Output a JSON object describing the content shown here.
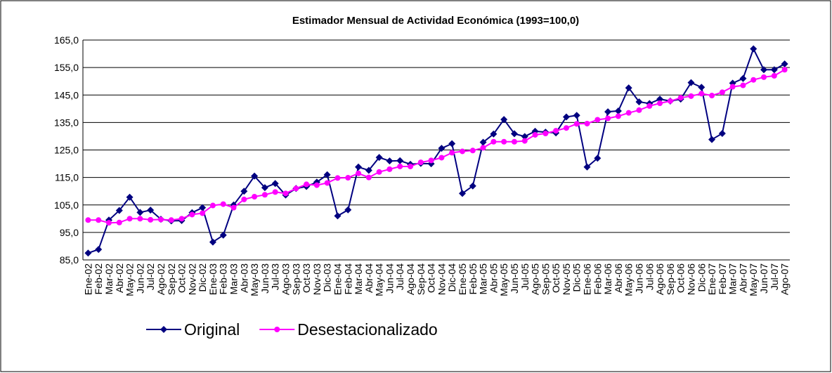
{
  "chart_data": {
    "type": "line",
    "title": "Estimador Mensual de Actividad Económica (1993=100,0)",
    "categories": [
      "Ene-02",
      "Feb-02",
      "Mar-02",
      "Abr-02",
      "May-02",
      "Jun-02",
      "Jul-02",
      "Ago-02",
      "Sep-02",
      "Oct-02",
      "Nov-02",
      "Dic-02",
      "Ene-03",
      "Feb-03",
      "Mar-03",
      "Abr-03",
      "May-03",
      "Jun-03",
      "Jul-03",
      "Ago-03",
      "Sep-03",
      "Oct-03",
      "Nov-03",
      "Dic-03",
      "Ene-04",
      "Feb-04",
      "Mar-04",
      "Abr-04",
      "May-04",
      "Jun-04",
      "Jul-04",
      "Ago-04",
      "Sep-04",
      "Oct-04",
      "Nov-04",
      "Dic-04",
      "Ene-05",
      "Feb-05",
      "Mar-05",
      "Abr-05",
      "May-05",
      "Jun-05",
      "Jul-05",
      "Ago-05",
      "Sep-05",
      "Oct-05",
      "Nov-05",
      "Dic-05",
      "Ene-06",
      "Feb-06",
      "Mar-06",
      "Abr-06",
      "May-06",
      "Jun-06",
      "Jul-06",
      "Ago-06",
      "Sep-06",
      "Oct-06",
      "Nov-06",
      "Dic-06",
      "Ene-07",
      "Feb-07",
      "Mar-07",
      "Abr-07",
      "May-07",
      "Jun-07",
      "Jul-07",
      "Ago-07"
    ],
    "series": [
      {
        "name": "Original",
        "color": "#000080",
        "marker": "diamond",
        "values": [
          87.5,
          88.8,
          99.5,
          103,
          107.8,
          102.3,
          103.1,
          99.8,
          99.2,
          99.3,
          102.2,
          104.0,
          91.5,
          94,
          105,
          110,
          115.5,
          111.3,
          112.8,
          108.6,
          111,
          111.7,
          113.3,
          116,
          101,
          103.2,
          118.8,
          117.6,
          122.3,
          121,
          121.1,
          119.8,
          120.1,
          120,
          125.6,
          127.3,
          109.2,
          111.9,
          127.8,
          130.8,
          136.1,
          130.9,
          129.9,
          131.8,
          131.5,
          131.2,
          137,
          137.6,
          118.8,
          122,
          138.9,
          139.2,
          147.6,
          142.5,
          141.9,
          143.5,
          142.8,
          143.5,
          149.5,
          147.8,
          128.8,
          131,
          149.3,
          151,
          161.8,
          154.2,
          154.2,
          156.3
        ]
      },
      {
        "name": "Desestacionalizado",
        "color": "#ff00ff",
        "marker": "circle",
        "values": [
          99.5,
          99.5,
          98.5,
          98.6,
          100,
          100,
          99.6,
          99.7,
          99.5,
          100,
          101.5,
          102,
          104.8,
          105.3,
          104,
          107,
          108,
          108.7,
          109.7,
          109.2,
          111,
          112.5,
          112.2,
          113,
          114.8,
          114.9,
          116.5,
          115,
          117,
          118,
          119,
          119,
          120.5,
          121.2,
          122.2,
          124,
          124.5,
          124.8,
          125.8,
          128,
          128,
          128,
          128.3,
          130.5,
          131,
          132,
          133,
          134.5,
          134.6,
          136,
          136.5,
          137.3,
          138.5,
          139.5,
          141,
          142,
          142.8,
          144,
          144.6,
          145.5,
          144.8,
          146,
          148,
          148.5,
          150.5,
          151.5,
          152,
          154.2
        ]
      }
    ],
    "ylim": [
      85,
      165
    ],
    "yticks": [
      {
        "value": 85,
        "label": "85,0"
      },
      {
        "value": 95,
        "label": "95,0"
      },
      {
        "value": 105,
        "label": "105,0"
      },
      {
        "value": 115,
        "label": "115,0"
      },
      {
        "value": 125,
        "label": "125,0"
      },
      {
        "value": 135,
        "label": "135,0"
      },
      {
        "value": 145,
        "label": "145,0"
      },
      {
        "value": 155,
        "label": "155,0"
      },
      {
        "value": 165,
        "label": "165,0"
      }
    ],
    "grid": true,
    "legend": "bottom-left"
  }
}
